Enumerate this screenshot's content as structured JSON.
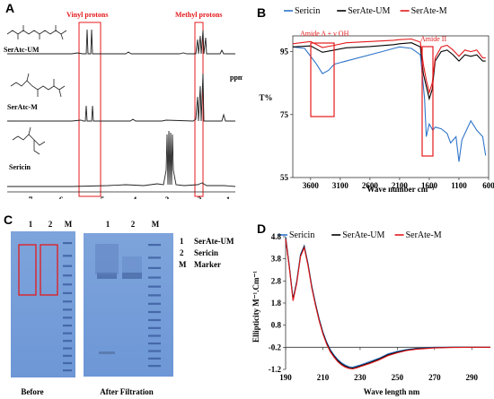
{
  "panels": {
    "a": "A",
    "b": "B",
    "c": "C",
    "d": "D"
  },
  "panel_a": {
    "annotations": [
      "Vinyl protons",
      "Methyl protons"
    ],
    "trace_labels": [
      "SerAtc-UM",
      "SerAtc-M",
      "Sericin"
    ],
    "x_ticks": [
      "7",
      "6",
      "5",
      "4",
      "3",
      "2",
      "1"
    ],
    "x_unit": "ppm",
    "colors": {
      "annotation": "#e41a1c",
      "trace": "#222222"
    }
  },
  "chart_data": [
    {
      "type": "line",
      "title": "",
      "xlabel": "Wave number cm⁻¹",
      "ylabel": "T%",
      "legend": [
        "Sericin",
        "SerAte-UM",
        "SerAte-M"
      ],
      "legend_position": "top",
      "x_ticks": [
        "3600",
        "3100",
        "2600",
        "2100",
        "1600",
        "1100",
        "600"
      ],
      "y_ticks": [
        "95",
        "75",
        "55"
      ],
      "xlim": [
        3900,
        600
      ],
      "ylim": [
        55,
        100
      ],
      "annotations": [
        "Amide A + ν OH",
        "Amide II"
      ],
      "colors": [
        "#2f75c9",
        "#000000",
        "#e41a1c"
      ],
      "series": [
        {
          "name": "Sericin",
          "x": [
            3900,
            3700,
            3500,
            3400,
            3300,
            3200,
            2900,
            2400,
            2200,
            2100,
            1900,
            1750,
            1680,
            1650,
            1600,
            1540,
            1500,
            1400,
            1300,
            1240,
            1150,
            1100,
            1050,
            900,
            800,
            700,
            650
          ],
          "values": [
            96.5,
            96,
            91,
            88,
            89,
            91,
            92.5,
            95,
            96,
            96.5,
            96,
            94,
            80,
            68,
            72,
            70,
            71,
            70.5,
            69,
            66,
            68,
            60,
            67,
            73,
            70,
            68,
            62
          ]
        },
        {
          "name": "SerAte-UM",
          "x": [
            3900,
            3600,
            3400,
            3200,
            3000,
            2600,
            2200,
            2100,
            1900,
            1750,
            1700,
            1650,
            1600,
            1550,
            1500,
            1400,
            1300,
            1200,
            1100,
            1000,
            900,
            800,
            700,
            650
          ],
          "values": [
            96.5,
            96.8,
            94.8,
            95.5,
            96.2,
            96.6,
            97.2,
            97.5,
            97.8,
            96.5,
            88,
            84,
            80,
            83,
            92,
            95,
            95.5,
            94,
            92,
            94,
            93.5,
            94,
            92,
            92
          ]
        },
        {
          "name": "SerAte-M",
          "x": [
            3900,
            3600,
            3400,
            3200,
            3000,
            2600,
            2200,
            2100,
            1900,
            1750,
            1700,
            1650,
            1600,
            1550,
            1500,
            1400,
            1300,
            1200,
            1100,
            1000,
            900,
            800,
            700,
            650
          ],
          "values": [
            97.5,
            98.2,
            96.3,
            97,
            97.8,
            98.2,
            98.6,
            98.8,
            99,
            98,
            91,
            86,
            82,
            85,
            93,
            96.5,
            97,
            95.5,
            93.5,
            95.5,
            95,
            95.5,
            93,
            93
          ]
        }
      ]
    },
    {
      "type": "line",
      "title": "",
      "xlabel": "Wave length nm",
      "ylabel": "Ellipticity M⁻¹.Cm⁻¹",
      "legend": [
        "Sericin",
        "SerAte-UM",
        "SerAte-M"
      ],
      "legend_position": "top",
      "x_ticks": [
        "190",
        "210",
        "230",
        "250",
        "270",
        "290"
      ],
      "y_ticks": [
        "4.8",
        "3.8",
        "2.8",
        "1.8",
        "0.8",
        "-0.2",
        "-1.2"
      ],
      "xlim": [
        190,
        300
      ],
      "ylim": [
        -1.2,
        4.8
      ],
      "colors": [
        "#2f75c9",
        "#000000",
        "#e41a1c"
      ],
      "series": [
        {
          "name": "Sericin",
          "x": [
            190,
            192,
            194,
            196,
            198,
            200,
            202,
            204,
            206,
            208,
            210,
            212,
            214,
            216,
            218,
            220,
            222,
            224,
            226,
            228,
            230,
            235,
            240,
            245,
            250,
            255,
            260,
            270,
            280,
            290,
            300
          ],
          "values": [
            4.8,
            3.5,
            2.0,
            2.8,
            4.0,
            4.4,
            3.6,
            2.6,
            1.8,
            1.1,
            0.5,
            0.05,
            -0.3,
            -0.55,
            -0.75,
            -0.9,
            -1.0,
            -1.08,
            -1.1,
            -1.05,
            -1.0,
            -0.85,
            -0.7,
            -0.5,
            -0.38,
            -0.3,
            -0.25,
            -0.2,
            -0.2,
            -0.2,
            -0.2
          ]
        },
        {
          "name": "SerAte-UM",
          "x": [
            190,
            192,
            194,
            196,
            198,
            200,
            202,
            204,
            206,
            208,
            210,
            212,
            214,
            216,
            218,
            220,
            222,
            224,
            226,
            228,
            230,
            235,
            240,
            245,
            250,
            255,
            260,
            270,
            280,
            290,
            300
          ],
          "values": [
            4.75,
            3.45,
            1.95,
            2.75,
            3.95,
            4.35,
            3.55,
            2.55,
            1.75,
            1.05,
            0.45,
            0.0,
            -0.35,
            -0.6,
            -0.8,
            -0.95,
            -1.05,
            -1.12,
            -1.14,
            -1.1,
            -1.04,
            -0.9,
            -0.74,
            -0.54,
            -0.42,
            -0.33,
            -0.27,
            -0.22,
            -0.2,
            -0.2,
            -0.2
          ]
        },
        {
          "name": "SerAte-M",
          "x": [
            190,
            192,
            194,
            196,
            198,
            200,
            202,
            204,
            206,
            208,
            210,
            212,
            214,
            216,
            218,
            220,
            222,
            224,
            226,
            228,
            230,
            235,
            240,
            245,
            250,
            255,
            260,
            270,
            280,
            290,
            300
          ],
          "values": [
            4.7,
            3.4,
            1.9,
            2.7,
            3.9,
            4.3,
            3.5,
            2.5,
            1.7,
            1.0,
            0.4,
            -0.05,
            -0.4,
            -0.65,
            -0.85,
            -1.0,
            -1.1,
            -1.16,
            -1.18,
            -1.14,
            -1.08,
            -0.94,
            -0.78,
            -0.58,
            -0.45,
            -0.35,
            -0.29,
            -0.23,
            -0.21,
            -0.2,
            -0.2
          ]
        }
      ]
    }
  ],
  "panel_c": {
    "lane_labels_before": [
      "1",
      "2",
      "M"
    ],
    "lane_labels_after": [
      "1",
      "2",
      "M"
    ],
    "legend": [
      {
        "key": "1",
        "text": "SerAte-UM"
      },
      {
        "key": "2",
        "text": "Sericin"
      },
      {
        "key": "M",
        "text": "Marker"
      }
    ],
    "caption_before": "Before",
    "caption_after": "After Filtration",
    "gel_color": "#7ea4db"
  }
}
